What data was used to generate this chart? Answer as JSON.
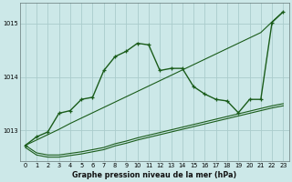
{
  "title": "Graphe pression niveau de la mer (hPa)",
  "bg_color": "#cce8e8",
  "grid_color": "#aacccc",
  "line_color": "#1a5c1a",
  "x_labels": [
    "0",
    "1",
    "2",
    "3",
    "4",
    "5",
    "6",
    "7",
    "8",
    "9",
    "10",
    "11",
    "12",
    "13",
    "14",
    "15",
    "16",
    "17",
    "18",
    "19",
    "20",
    "21",
    "22",
    "23"
  ],
  "main_y": [
    1012.72,
    1012.88,
    1012.97,
    1013.32,
    1013.37,
    1013.58,
    1013.62,
    1014.12,
    1014.38,
    1014.48,
    1014.63,
    1014.6,
    1014.12,
    1014.16,
    1014.16,
    1013.82,
    1013.68,
    1013.58,
    1013.55,
    1013.33,
    1013.58,
    1013.58,
    1015.02,
    1015.22
  ],
  "upper_y": [
    1012.72,
    1012.82,
    1012.92,
    1013.02,
    1013.13,
    1013.23,
    1013.33,
    1013.43,
    1013.53,
    1013.63,
    1013.73,
    1013.83,
    1013.93,
    1014.03,
    1014.13,
    1014.23,
    1014.33,
    1014.43,
    1014.53,
    1014.63,
    1014.73,
    1014.83,
    1015.03,
    1015.22
  ],
  "lower1_y": [
    1012.72,
    1012.58,
    1012.54,
    1012.54,
    1012.57,
    1012.6,
    1012.64,
    1012.68,
    1012.75,
    1012.8,
    1012.86,
    1012.91,
    1012.96,
    1013.01,
    1013.06,
    1013.11,
    1013.16,
    1013.21,
    1013.26,
    1013.31,
    1013.36,
    1013.41,
    1013.46,
    1013.5
  ],
  "lower2_y": [
    1012.68,
    1012.54,
    1012.5,
    1012.5,
    1012.53,
    1012.56,
    1012.6,
    1012.64,
    1012.71,
    1012.76,
    1012.82,
    1012.87,
    1012.92,
    1012.97,
    1013.02,
    1013.07,
    1013.12,
    1013.17,
    1013.22,
    1013.27,
    1013.32,
    1013.37,
    1013.42,
    1013.46
  ],
  "ylim": [
    1012.42,
    1015.38
  ],
  "yticks": [
    1013,
    1014,
    1015
  ],
  "xlim_min": -0.5,
  "xlim_max": 23.5
}
